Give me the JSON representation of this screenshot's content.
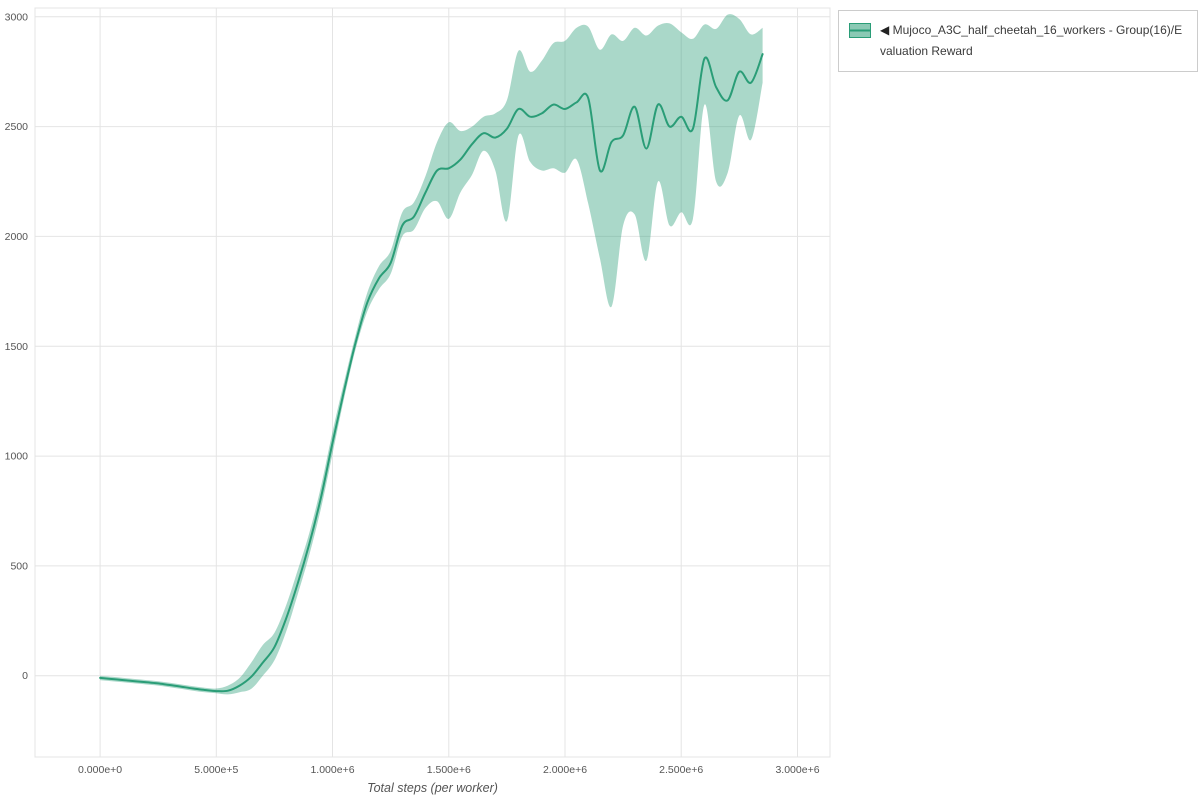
{
  "colors": {
    "line": "#2a9d77",
    "band": "#2a9d77",
    "band_opacity": 0.4,
    "grid": "#e4e4e4",
    "tick_text": "#555555",
    "axis_title": "#555555",
    "legend_border": "#cccccc"
  },
  "legend": {
    "collapse_icon": "◀",
    "label": "Mujoco_A3C_half_cheetah_16_workers - Group(16)/Evaluation Reward"
  },
  "chart_data": {
    "type": "line",
    "title": "",
    "xlabel": "Total steps (per worker)",
    "ylabel": "",
    "grid": true,
    "legend_position": "top-right-outside",
    "xlim": [
      -280000,
      3140000
    ],
    "ylim": [
      -370,
      3040
    ],
    "x_ticks": [
      {
        "v": 0,
        "label": "0.000e+0"
      },
      {
        "v": 500000,
        "label": "5.000e+5"
      },
      {
        "v": 1000000,
        "label": "1.000e+6"
      },
      {
        "v": 1500000,
        "label": "1.500e+6"
      },
      {
        "v": 2000000,
        "label": "2.000e+6"
      },
      {
        "v": 2500000,
        "label": "2.500e+6"
      },
      {
        "v": 3000000,
        "label": "3.000e+6"
      }
    ],
    "y_ticks": [
      {
        "v": 0,
        "label": "0"
      },
      {
        "v": 500,
        "label": "500"
      },
      {
        "v": 1000,
        "label": "1000"
      },
      {
        "v": 1500,
        "label": "1500"
      },
      {
        "v": 2000,
        "label": "2000"
      },
      {
        "v": 2500,
        "label": "2500"
      },
      {
        "v": 3000,
        "label": "3000"
      }
    ],
    "series": [
      {
        "name": "Mujoco_A3C_half_cheetah_16_workers - Group(16)/Evaluation Reward",
        "x": [
          0,
          50000,
          100000,
          150000,
          200000,
          250000,
          300000,
          350000,
          400000,
          450000,
          500000,
          550000,
          600000,
          650000,
          700000,
          750000,
          800000,
          850000,
          900000,
          950000,
          1000000,
          1050000,
          1100000,
          1150000,
          1200000,
          1250000,
          1300000,
          1350000,
          1400000,
          1450000,
          1500000,
          1550000,
          1600000,
          1650000,
          1700000,
          1750000,
          1800000,
          1850000,
          1900000,
          1950000,
          2000000,
          2050000,
          2100000,
          2150000,
          2200000,
          2250000,
          2300000,
          2350000,
          2400000,
          2450000,
          2500000,
          2550000,
          2600000,
          2650000,
          2700000,
          2750000,
          2800000,
          2850000
        ],
        "mean": [
          -10,
          -15,
          -20,
          -25,
          -30,
          -35,
          -42,
          -50,
          -58,
          -65,
          -70,
          -68,
          -45,
          -5,
          60,
          130,
          260,
          420,
          600,
          810,
          1060,
          1300,
          1520,
          1700,
          1810,
          1880,
          2050,
          2090,
          2200,
          2300,
          2310,
          2350,
          2420,
          2470,
          2450,
          2490,
          2580,
          2545,
          2560,
          2600,
          2580,
          2610,
          2630,
          2300,
          2430,
          2460,
          2590,
          2400,
          2600,
          2500,
          2545,
          2490,
          2810,
          2680,
          2620,
          2750,
          2700,
          2830
        ],
        "lower": [
          -20,
          -25,
          -30,
          -35,
          -40,
          -45,
          -52,
          -60,
          -68,
          -75,
          -80,
          -85,
          -75,
          -60,
          0,
          70,
          200,
          370,
          550,
          760,
          1010,
          1265,
          1490,
          1660,
          1760,
          1830,
          2000,
          2030,
          2130,
          2160,
          2080,
          2200,
          2280,
          2390,
          2300,
          2070,
          2460,
          2340,
          2300,
          2310,
          2290,
          2350,
          2150,
          1900,
          1680,
          2050,
          2100,
          1890,
          2250,
          2050,
          2110,
          2080,
          2600,
          2250,
          2290,
          2550,
          2440,
          2700
        ],
        "upper": [
          0,
          -5,
          -10,
          -15,
          -20,
          -25,
          -32,
          -40,
          -48,
          -55,
          -58,
          -45,
          -10,
          60,
          140,
          195,
          320,
          480,
          650,
          860,
          1110,
          1340,
          1555,
          1745,
          1865,
          1935,
          2110,
          2155,
          2275,
          2430,
          2520,
          2480,
          2500,
          2545,
          2560,
          2620,
          2845,
          2750,
          2800,
          2880,
          2890,
          2950,
          2955,
          2850,
          2920,
          2890,
          2950,
          2915,
          2960,
          2970,
          2930,
          2900,
          2965,
          2945,
          3010,
          2990,
          2920,
          2950
        ]
      }
    ]
  }
}
